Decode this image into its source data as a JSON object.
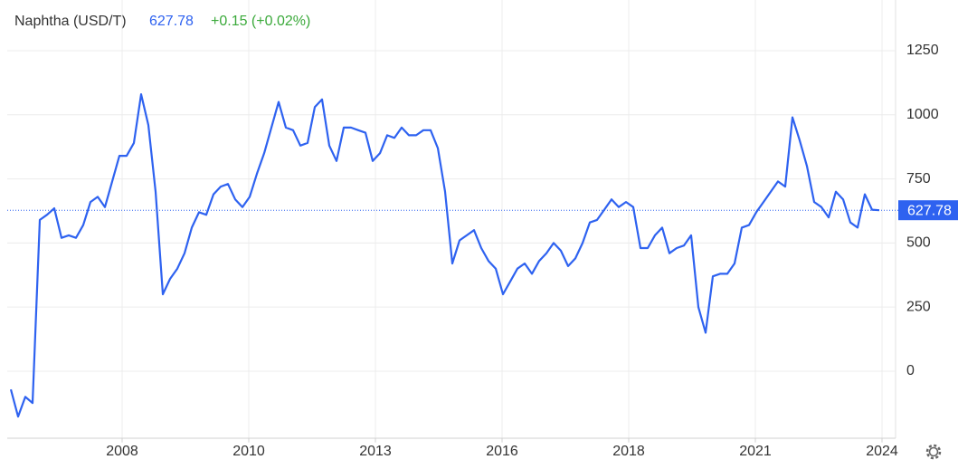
{
  "chart_data": {
    "type": "line",
    "title": "Naphtha (USD/T)",
    "price": "627.78",
    "change": "+0.15 (+0.02%)",
    "series": [
      {
        "color": "#2e62f0",
        "values": [
          -71,
          -177,
          -100,
          -124,
          590,
          610,
          635,
          520,
          530,
          520,
          570,
          660,
          680,
          640,
          740,
          840,
          840,
          890,
          1080,
          960,
          700,
          300,
          360,
          400,
          460,
          560,
          620,
          610,
          690,
          720,
          730,
          670,
          640,
          680,
          770,
          850,
          950,
          1050,
          950,
          940,
          880,
          890,
          1030,
          1060,
          880,
          820,
          950,
          950,
          940,
          930,
          820,
          850,
          920,
          910,
          950,
          920,
          920,
          940,
          940,
          870,
          700,
          420,
          510,
          530,
          550,
          480,
          430,
          400,
          300,
          350,
          400,
          420,
          380,
          430,
          460,
          500,
          470,
          410,
          440,
          500,
          580,
          590,
          630,
          670,
          640,
          660,
          640,
          480,
          480,
          530,
          560,
          460,
          480,
          490,
          530,
          250,
          150,
          370,
          380,
          380,
          420,
          560,
          570,
          620,
          660,
          700,
          740,
          720,
          990,
          900,
          800,
          660,
          640,
          600,
          700,
          670,
          580,
          560,
          690,
          630,
          627.78
        ]
      }
    ],
    "xlim": [
      -0.5,
      121.5
    ],
    "xticks": [
      {
        "value": 15.375,
        "label": "2008"
      },
      {
        "value": 32.875,
        "label": "2010"
      },
      {
        "value": 50.375,
        "label": "2013"
      },
      {
        "value": 67.875,
        "label": "2016"
      },
      {
        "value": 85.375,
        "label": "2018"
      },
      {
        "value": 102.875,
        "label": "2021"
      },
      {
        "value": 120.375,
        "label": "2024"
      }
    ],
    "ylim": [
      -260,
      1310
    ],
    "yticks": [
      0,
      250,
      500,
      750,
      1000,
      1250
    ],
    "grid": true
  }
}
